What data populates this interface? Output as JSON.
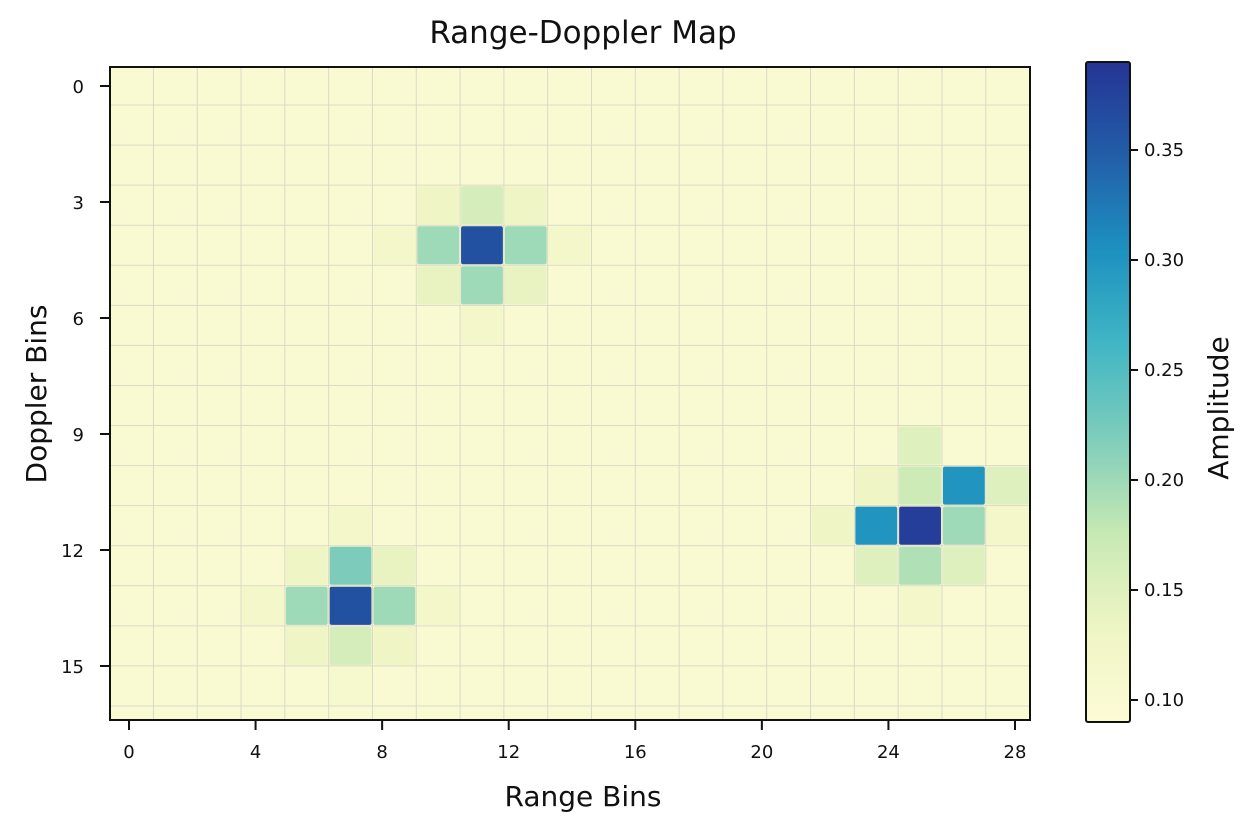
{
  "chart_data": {
    "type": "heatmap",
    "title": "Range-Doppler Map",
    "xlabel": "Range Bins",
    "ylabel": "Doppler Bins",
    "colorbar_label": "Amplitude",
    "x_ticks": [
      0,
      4,
      8,
      12,
      16,
      20,
      24,
      28
    ],
    "y_ticks": [
      0,
      3,
      6,
      9,
      12,
      15
    ],
    "colorbar_ticks": [
      "0.10",
      "0.15",
      "0.20",
      "0.25",
      "0.30",
      "0.35"
    ],
    "colorbar_range": [
      0.09,
      0.39
    ],
    "n_range_bins": 21,
    "n_doppler_bins": 16,
    "background_value": 0.1,
    "colormap": [
      "#fdfbd6",
      "#eef5c4",
      "#c7e9b4",
      "#7fcdbb",
      "#41b6c4",
      "#1d91c0",
      "#225ea8",
      "#253494"
    ],
    "grid": true,
    "cells": [
      {
        "range": 7,
        "doppler": 3,
        "value": 0.13
      },
      {
        "range": 8,
        "doppler": 3,
        "value": 0.16
      },
      {
        "range": 9,
        "doppler": 3,
        "value": 0.13
      },
      {
        "range": 6,
        "doppler": 4,
        "value": 0.12
      },
      {
        "range": 7,
        "doppler": 4,
        "value": 0.2
      },
      {
        "range": 8,
        "doppler": 4,
        "value": 0.36
      },
      {
        "range": 9,
        "doppler": 4,
        "value": 0.2
      },
      {
        "range": 10,
        "doppler": 4,
        "value": 0.12
      },
      {
        "range": 7,
        "doppler": 5,
        "value": 0.14
      },
      {
        "range": 8,
        "doppler": 5,
        "value": 0.2
      },
      {
        "range": 9,
        "doppler": 5,
        "value": 0.14
      },
      {
        "range": 8,
        "doppler": 6,
        "value": 0.12
      },
      {
        "range": 18,
        "doppler": 9,
        "value": 0.15
      },
      {
        "range": 17,
        "doppler": 10,
        "value": 0.13
      },
      {
        "range": 18,
        "doppler": 10,
        "value": 0.17
      },
      {
        "range": 19,
        "doppler": 10,
        "value": 0.3
      },
      {
        "range": 20,
        "doppler": 10,
        "value": 0.15
      },
      {
        "range": 16,
        "doppler": 11,
        "value": 0.13
      },
      {
        "range": 17,
        "doppler": 11,
        "value": 0.3
      },
      {
        "range": 18,
        "doppler": 11,
        "value": 0.38
      },
      {
        "range": 19,
        "doppler": 11,
        "value": 0.2
      },
      {
        "range": 20,
        "doppler": 11,
        "value": 0.12
      },
      {
        "range": 17,
        "doppler": 12,
        "value": 0.15
      },
      {
        "range": 18,
        "doppler": 12,
        "value": 0.19
      },
      {
        "range": 19,
        "doppler": 12,
        "value": 0.15
      },
      {
        "range": 18,
        "doppler": 13,
        "value": 0.12
      },
      {
        "range": 5,
        "doppler": 11,
        "value": 0.12
      },
      {
        "range": 4,
        "doppler": 12,
        "value": 0.13
      },
      {
        "range": 5,
        "doppler": 12,
        "value": 0.22
      },
      {
        "range": 6,
        "doppler": 12,
        "value": 0.14
      },
      {
        "range": 3,
        "doppler": 13,
        "value": 0.12
      },
      {
        "range": 4,
        "doppler": 13,
        "value": 0.2
      },
      {
        "range": 5,
        "doppler": 13,
        "value": 0.36
      },
      {
        "range": 6,
        "doppler": 13,
        "value": 0.2
      },
      {
        "range": 7,
        "doppler": 13,
        "value": 0.12
      },
      {
        "range": 4,
        "doppler": 14,
        "value": 0.13
      },
      {
        "range": 5,
        "doppler": 14,
        "value": 0.16
      },
      {
        "range": 6,
        "doppler": 14,
        "value": 0.13
      },
      {
        "range": 5,
        "doppler": 15,
        "value": 0.11
      }
    ]
  }
}
